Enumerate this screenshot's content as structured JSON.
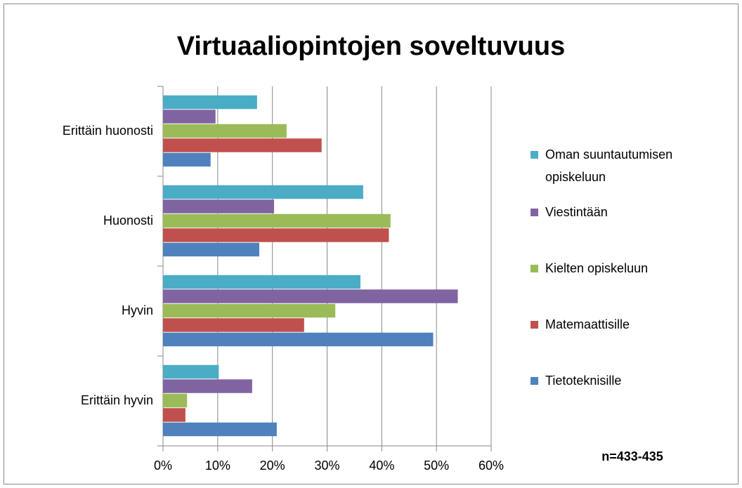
{
  "chart_data": {
    "type": "bar",
    "orientation": "horizontal",
    "title": "Virtuaaliopintojen soveltuvuus",
    "annotation": "n=433-435",
    "categories": [
      "Erittäin huonosti",
      "Huonosti",
      "Hyvin",
      "Erittäin hyvin"
    ],
    "series": [
      {
        "name": "Oman suuntautumisen opiskeluun",
        "color": "#4bacc6",
        "values": [
          17.2,
          36.6,
          36.1,
          10.2
        ]
      },
      {
        "name": "Viestintään",
        "color": "#8064a2",
        "values": [
          9.6,
          20.3,
          53.9,
          16.3
        ]
      },
      {
        "name": "Kielten opiskeluun",
        "color": "#9bbb59",
        "values": [
          22.6,
          41.6,
          31.5,
          4.4
        ]
      },
      {
        "name": "Matemaattisille",
        "color": "#c0504d",
        "values": [
          29.0,
          41.3,
          25.8,
          4.1
        ]
      },
      {
        "name": "Tietoteknisille",
        "color": "#4f81bd",
        "values": [
          8.7,
          17.6,
          49.4,
          20.8
        ]
      }
    ],
    "xlim": [
      0,
      60
    ],
    "xticks": [
      {
        "value": 0,
        "label": "0%"
      },
      {
        "value": 10,
        "label": "10%"
      },
      {
        "value": 20,
        "label": "20%"
      },
      {
        "value": 30,
        "label": "30%"
      },
      {
        "value": 40,
        "label": "40%"
      },
      {
        "value": 50,
        "label": "50%"
      },
      {
        "value": 60,
        "label": "60%"
      }
    ],
    "grid": true,
    "legend": "right"
  }
}
